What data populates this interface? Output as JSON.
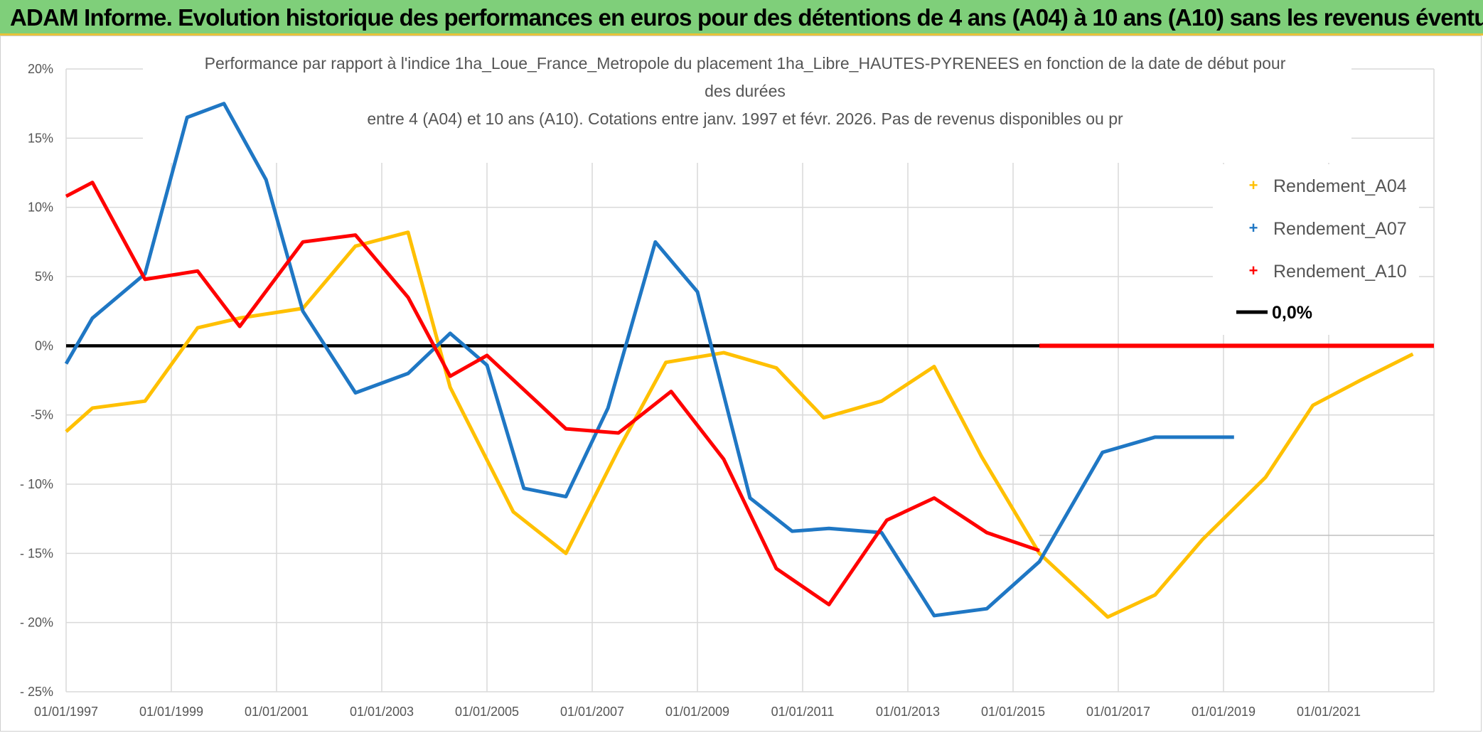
{
  "banner": {
    "title": "ADAM Informe. Evolution historique des performances en euros pour des détentions de 4 ans (A04) à 10 ans (A10) sans les revenus éventuels"
  },
  "chart_data": {
    "type": "line",
    "title_lines": [
      "Performance par rapport à l'indice 1ha_Loue_France_Metropole  du placement 1ha_Libre_HAUTES-PYRENEES en fonction de la date de début pour",
      "des durées",
      "entre 4 (A04) et 10 ans (A10). Cotations entre janv. 1997 et févr. 2026. Pas de revenus disponibles ou pr"
    ],
    "xlabel": "",
    "ylabel": "",
    "xlim": [
      1997.0,
      2023.0
    ],
    "ylim": [
      -25,
      20
    ],
    "y_ticks": [
      20,
      15,
      10,
      5,
      0,
      -5,
      -10,
      -15,
      -20,
      -25
    ],
    "y_tick_labels": [
      "20%",
      "15%",
      "10%",
      "5%",
      "0%",
      "-5%",
      "- 10%",
      "- 15%",
      "- 20%",
      "- 25%"
    ],
    "x_ticks": [
      1997,
      1999,
      2001,
      2003,
      2005,
      2007,
      2009,
      2011,
      2013,
      2015,
      2017,
      2019,
      2021
    ],
    "x_tick_labels": [
      "01/01/1997",
      "01/01/1999",
      "01/01/2001",
      "01/01/2003",
      "01/01/2005",
      "01/01/2007",
      "01/01/2009",
      "01/01/2011",
      "01/01/2013",
      "01/01/2015",
      "01/01/2017",
      "01/01/2019",
      "01/01/2021"
    ],
    "grid": true,
    "legend_position": "right",
    "series": [
      {
        "name": "Rendement_A04",
        "color": "#ffc000",
        "x": [
          1997.0,
          1997.5,
          1998.5,
          1999.5,
          2000.3,
          2001.5,
          2002.5,
          2003.5,
          2004.3,
          2005.5,
          2006.5,
          2007.5,
          2008.4,
          2009.5,
          2010.5,
          2011.4,
          2012.5,
          2013.5,
          2014.4,
          2015.5,
          2016.8,
          2017.7,
          2018.6,
          2019.8,
          2020.7,
          2021.6,
          2022.6
        ],
        "y": [
          -6.2,
          -4.5,
          -4.0,
          1.3,
          2.0,
          2.7,
          7.2,
          8.2,
          -3.0,
          -12.0,
          -15.0,
          -7.5,
          -1.2,
          -0.5,
          -1.6,
          -5.2,
          -4.0,
          -1.5,
          -8.0,
          -15.0,
          -19.6,
          -18.0,
          -14.0,
          -9.5,
          -4.3,
          -2.5,
          -0.6
        ]
      },
      {
        "name": "Rendement_A07",
        "color": "#1f77c4",
        "x": [
          1997.0,
          1997.5,
          1998.5,
          1999.3,
          2000.0,
          2000.8,
          2001.5,
          2002.5,
          2003.5,
          2004.3,
          2005.0,
          2005.7,
          2006.5,
          2007.3,
          2008.2,
          2009.0,
          2010.0,
          2010.8,
          2011.5,
          2012.5,
          2013.5,
          2014.5,
          2015.5,
          2016.7,
          2017.7,
          2018.6,
          2019.2
        ],
        "y": [
          -1.3,
          2.0,
          5.2,
          16.5,
          17.5,
          12.0,
          2.5,
          -3.4,
          -2.0,
          0.9,
          -1.4,
          -10.3,
          -10.9,
          -4.5,
          7.5,
          3.9,
          -11.0,
          -13.4,
          -13.2,
          -13.5,
          -19.5,
          -19.0,
          -15.6,
          -7.7,
          -6.6,
          -6.6,
          -6.6
        ]
      },
      {
        "name": "Rendement_A10",
        "color": "#ff0000",
        "x": [
          1997.0,
          1997.5,
          1998.5,
          1999.5,
          2000.3,
          2001.5,
          2002.5,
          2003.5,
          2004.3,
          2005.0,
          2006.5,
          2007.5,
          2008.5,
          2009.5,
          2010.5,
          2011.5,
          2012.6,
          2013.5,
          2014.5,
          2015.5
        ],
        "y": [
          10.8,
          11.8,
          4.8,
          5.4,
          1.4,
          7.5,
          8.0,
          3.5,
          -2.2,
          -0.7,
          -6.0,
          -6.3,
          -3.3,
          -8.2,
          -16.1,
          -18.7,
          -12.6,
          -11.0,
          -13.5,
          -14.8
        ]
      },
      {
        "name": "0,0%",
        "color": "#000000",
        "x": [
          1997.0,
          2023.0
        ],
        "y": [
          0.0,
          0.0
        ]
      }
    ],
    "extra_series_segment_a10_zero": {
      "x": [
        2015.5,
        2023.0
      ],
      "y": [
        0.0,
        0.0
      ]
    },
    "legend": [
      "Rendement_A04",
      "Rendement_A07",
      "Rendement_A10",
      "0,0%"
    ]
  }
}
